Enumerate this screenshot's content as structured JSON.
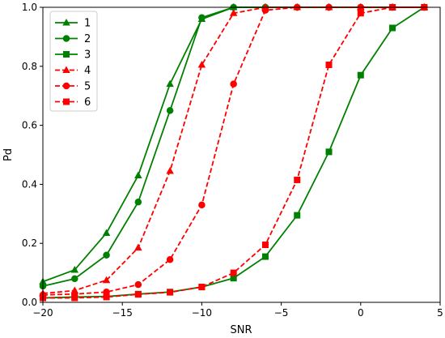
{
  "chart_data": {
    "type": "line",
    "title": "",
    "xlabel": "SNR",
    "ylabel": "Pd",
    "xlim": [
      -20,
      5
    ],
    "ylim": [
      0,
      1
    ],
    "xticks": [
      -20,
      -15,
      -10,
      -5,
      0,
      5
    ],
    "xtick_labels": [
      "−20",
      "−15",
      "−10",
      "−5",
      "0",
      "5"
    ],
    "yticks": [
      0,
      0.2,
      0.4,
      0.6,
      0.8,
      1
    ],
    "ytick_labels": [
      "0.0",
      "0.2",
      "0.4",
      "0.6",
      "0.8",
      "1.0"
    ],
    "grid": false,
    "legend_position": "top-left",
    "x": [
      -20,
      -18,
      -16,
      -14,
      -12,
      -10,
      -8,
      -6,
      -4,
      -2,
      0,
      2,
      4
    ],
    "series": [
      {
        "name": "1",
        "color": "#008000",
        "linestyle": "solid",
        "marker": "triangle",
        "values": [
          0.07,
          0.11,
          0.235,
          0.43,
          0.74,
          0.96,
          1.0,
          1.0,
          1.0,
          1.0,
          1.0,
          1.0,
          1.0
        ]
      },
      {
        "name": "2",
        "color": "#008000",
        "linestyle": "solid",
        "marker": "circle",
        "values": [
          0.055,
          0.08,
          0.16,
          0.34,
          0.65,
          0.965,
          1.0,
          1.0,
          1.0,
          1.0,
          1.0,
          1.0,
          1.0
        ]
      },
      {
        "name": "3",
        "color": "#008000",
        "linestyle": "solid",
        "marker": "square",
        "values": [
          0.015,
          0.018,
          0.02,
          0.028,
          0.035,
          0.052,
          0.082,
          0.155,
          0.295,
          0.51,
          0.77,
          0.93,
          1.0
        ]
      },
      {
        "name": "4",
        "color": "#ff0000",
        "linestyle": "dashed",
        "marker": "triangle",
        "values": [
          0.03,
          0.04,
          0.075,
          0.185,
          0.445,
          0.805,
          0.98,
          1.0,
          1.0,
          1.0,
          1.0,
          1.0,
          1.0
        ]
      },
      {
        "name": "5",
        "color": "#ff0000",
        "linestyle": "dashed",
        "marker": "circle",
        "values": [
          0.025,
          0.028,
          0.035,
          0.06,
          0.145,
          0.33,
          0.74,
          0.99,
          1.0,
          1.0,
          1.0,
          1.0,
          1.0
        ]
      },
      {
        "name": "6",
        "color": "#ff0000",
        "linestyle": "dashed",
        "marker": "square",
        "values": [
          0.015,
          0.015,
          0.018,
          0.027,
          0.034,
          0.052,
          0.1,
          0.195,
          0.415,
          0.805,
          0.98,
          1.0,
          1.0
        ]
      }
    ]
  }
}
